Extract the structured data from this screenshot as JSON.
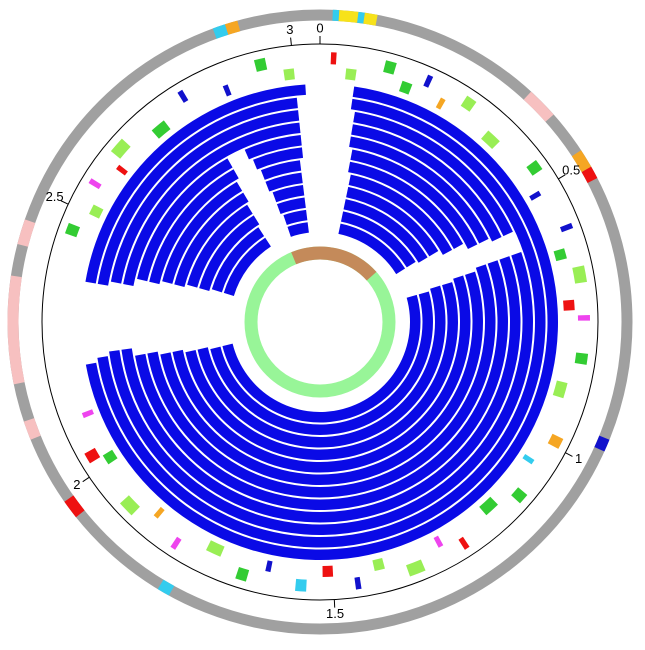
{
  "chart_data": {
    "type": "circular-genome",
    "xlim": [
      0,
      3.05
    ],
    "xticks": [
      0,
      0.5,
      1,
      1.5,
      2,
      2.5,
      3
    ],
    "backbone": {
      "color": "#a0a0a0",
      "features": [
        {
          "start": 2.88,
          "end": 2.9,
          "color": "#33ccee"
        },
        {
          "start": 2.9,
          "end": 2.92,
          "color": "#f5a623"
        },
        {
          "start": 0.02,
          "end": 0.03,
          "color": "#33ccee"
        },
        {
          "start": 0.03,
          "end": 0.06,
          "color": "#f7e21a"
        },
        {
          "start": 0.06,
          "end": 0.07,
          "color": "#33ccee"
        },
        {
          "start": 0.07,
          "end": 0.09,
          "color": "#f7e21a"
        },
        {
          "start": 0.36,
          "end": 0.41,
          "color": "#f7c0c0"
        },
        {
          "start": 0.48,
          "end": 0.51,
          "color": "#f5a623"
        },
        {
          "start": 0.51,
          "end": 0.53,
          "color": "#ee1111"
        },
        {
          "start": 0.95,
          "end": 0.97,
          "color": "#1111cc"
        },
        {
          "start": 1.77,
          "end": 1.79,
          "color": "#33ccee"
        },
        {
          "start": 1.96,
          "end": 1.99,
          "color": "#ee1111"
        },
        {
          "start": 2.1,
          "end": 2.13,
          "color": "#f7c0c0"
        },
        {
          "start": 2.19,
          "end": 2.36,
          "color": "#f7c0c0"
        },
        {
          "start": 2.41,
          "end": 2.45,
          "color": "#f7c0c0"
        }
      ]
    },
    "genes": [
      {
        "start": 0.02,
        "end": 0.03,
        "color": "#ee1111"
      },
      {
        "start": 0.12,
        "end": 0.14,
        "color": "#33cc33"
      },
      {
        "start": 0.2,
        "end": 0.21,
        "color": "#1111cc"
      },
      {
        "start": 0.28,
        "end": 0.3,
        "color": "#99ee55"
      },
      {
        "start": 0.45,
        "end": 0.47,
        "color": "#33cc33"
      },
      {
        "start": 0.58,
        "end": 0.59,
        "color": "#1111cc"
      },
      {
        "start": 0.66,
        "end": 0.69,
        "color": "#99ee55"
      },
      {
        "start": 0.75,
        "end": 0.76,
        "color": "#ee44ee"
      },
      {
        "start": 0.82,
        "end": 0.84,
        "color": "#33cc33"
      },
      {
        "start": 0.98,
        "end": 1.0,
        "color": "#f5a623"
      },
      {
        "start": 1.1,
        "end": 1.12,
        "color": "#33cc33"
      },
      {
        "start": 1.24,
        "end": 1.25,
        "color": "#ee1111"
      },
      {
        "start": 1.33,
        "end": 1.36,
        "color": "#99ee55"
      },
      {
        "start": 1.45,
        "end": 1.46,
        "color": "#1111cc"
      },
      {
        "start": 1.55,
        "end": 1.57,
        "color": "#33ccee"
      },
      {
        "start": 1.66,
        "end": 1.68,
        "color": "#33cc33"
      },
      {
        "start": 1.8,
        "end": 1.81,
        "color": "#ee44ee"
      },
      {
        "start": 1.9,
        "end": 1.93,
        "color": "#99ee55"
      },
      {
        "start": 2.02,
        "end": 2.04,
        "color": "#ee1111"
      },
      {
        "start": 2.45,
        "end": 2.47,
        "color": "#33cc33"
      },
      {
        "start": 2.55,
        "end": 2.56,
        "color": "#ee44ee"
      },
      {
        "start": 2.62,
        "end": 2.65,
        "color": "#99ee55"
      },
      {
        "start": 2.78,
        "end": 2.79,
        "color": "#1111cc"
      },
      {
        "start": 2.93,
        "end": 2.95,
        "color": "#33cc33"
      }
    ],
    "genes_inner": [
      {
        "start": 0.05,
        "end": 0.07,
        "color": "#99ee55"
      },
      {
        "start": 0.16,
        "end": 0.18,
        "color": "#33cc33"
      },
      {
        "start": 0.24,
        "end": 0.25,
        "color": "#f5a623"
      },
      {
        "start": 0.35,
        "end": 0.38,
        "color": "#99ee55"
      },
      {
        "start": 0.5,
        "end": 0.51,
        "color": "#1111cc"
      },
      {
        "start": 0.62,
        "end": 0.64,
        "color": "#33cc33"
      },
      {
        "start": 0.72,
        "end": 0.74,
        "color": "#ee1111"
      },
      {
        "start": 0.88,
        "end": 0.91,
        "color": "#99ee55"
      },
      {
        "start": 1.04,
        "end": 1.05,
        "color": "#33ccee"
      },
      {
        "start": 1.15,
        "end": 1.18,
        "color": "#33cc33"
      },
      {
        "start": 1.28,
        "end": 1.29,
        "color": "#ee44ee"
      },
      {
        "start": 1.4,
        "end": 1.42,
        "color": "#99ee55"
      },
      {
        "start": 1.5,
        "end": 1.52,
        "color": "#ee1111"
      },
      {
        "start": 1.62,
        "end": 1.63,
        "color": "#1111cc"
      },
      {
        "start": 1.72,
        "end": 1.75,
        "color": "#99ee55"
      },
      {
        "start": 1.86,
        "end": 1.87,
        "color": "#f5a623"
      },
      {
        "start": 2.0,
        "end": 2.02,
        "color": "#33cc33"
      },
      {
        "start": 2.1,
        "end": 2.11,
        "color": "#ee44ee"
      },
      {
        "start": 2.5,
        "end": 2.52,
        "color": "#99ee55"
      },
      {
        "start": 2.6,
        "end": 2.61,
        "color": "#ee1111"
      },
      {
        "start": 2.7,
        "end": 2.73,
        "color": "#33cc33"
      },
      {
        "start": 2.86,
        "end": 2.87,
        "color": "#1111cc"
      },
      {
        "start": 2.98,
        "end": 3.0,
        "color": "#99ee55"
      }
    ],
    "ring_color": "#0a0ae6",
    "rings": [
      {
        "segments": [
          [
            0.07,
            2.2
          ],
          [
            2.37,
            3.02
          ]
        ]
      },
      {
        "segments": [
          [
            0.07,
            2.21
          ],
          [
            2.37,
            3.0
          ]
        ]
      },
      {
        "segments": [
          [
            0.08,
            0.55
          ],
          [
            0.6,
            2.22
          ],
          [
            2.38,
            3.0
          ]
        ]
      },
      {
        "segments": [
          [
            0.08,
            0.55
          ],
          [
            0.6,
            2.22
          ],
          [
            2.38,
            3.0
          ]
        ]
      },
      {
        "segments": [
          [
            0.08,
            0.54
          ],
          [
            0.6,
            2.2
          ],
          [
            2.4,
            2.8
          ],
          [
            2.85,
            3.0
          ]
        ]
      },
      {
        "segments": [
          [
            0.09,
            0.54
          ],
          [
            0.6,
            2.2
          ],
          [
            2.4,
            2.8
          ],
          [
            2.86,
            3.0
          ]
        ]
      },
      {
        "segments": [
          [
            0.09,
            0.52
          ],
          [
            0.61,
            2.19
          ],
          [
            2.41,
            2.79
          ],
          [
            2.87,
            2.99
          ]
        ]
      },
      {
        "segments": [
          [
            0.1,
            0.52
          ],
          [
            0.61,
            2.19
          ],
          [
            2.41,
            2.79
          ],
          [
            2.87,
            2.99
          ]
        ]
      },
      {
        "segments": [
          [
            0.1,
            0.5
          ],
          [
            0.62,
            2.18
          ],
          [
            2.42,
            2.78
          ],
          [
            2.88,
            2.99
          ]
        ]
      },
      {
        "segments": [
          [
            0.1,
            0.5
          ],
          [
            0.62,
            2.18
          ],
          [
            2.42,
            2.78
          ],
          [
            2.88,
            2.99
          ]
        ]
      },
      {
        "segments": [
          [
            0.1,
            0.49
          ],
          [
            0.63,
            2.17
          ],
          [
            2.43,
            2.77
          ],
          [
            2.89,
            2.99
          ]
        ]
      },
      {
        "segments": [
          [
            0.1,
            0.49
          ],
          [
            0.63,
            2.17
          ],
          [
            2.43,
            2.77
          ],
          [
            2.89,
            2.99
          ]
        ]
      }
    ],
    "reference": {
      "color": "#98f598",
      "features": [
        {
          "start": 2.86,
          "end": 0.41,
          "color": "#c48a5a"
        }
      ]
    }
  }
}
